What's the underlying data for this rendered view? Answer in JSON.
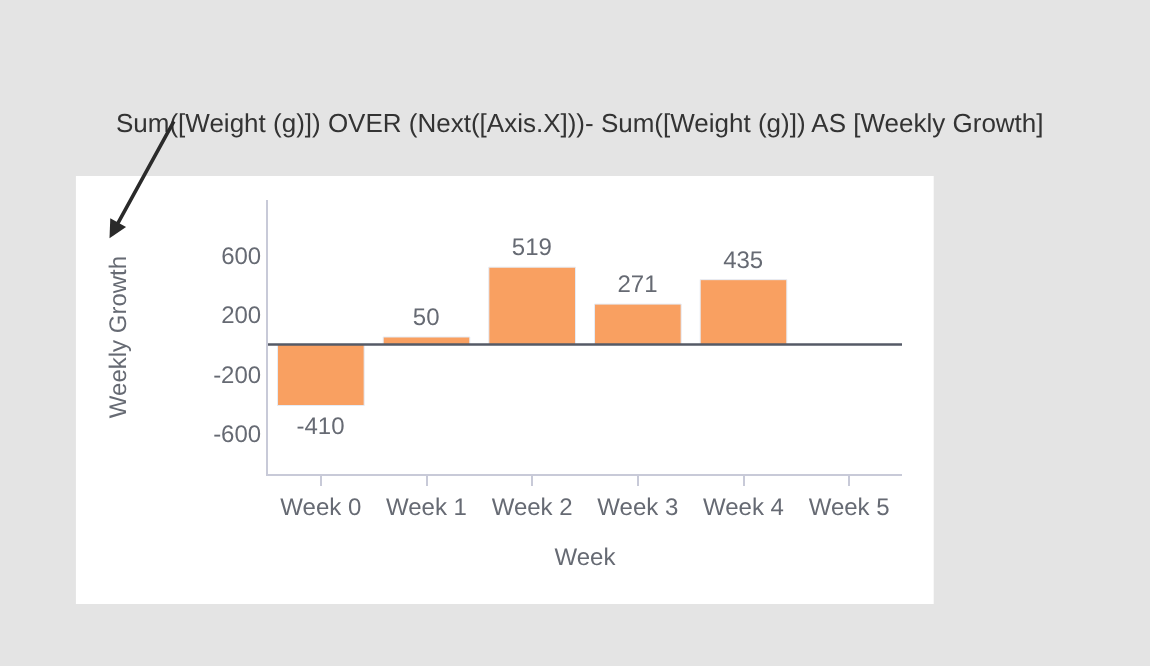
{
  "chart_data": {
    "type": "bar",
    "xlabel": "Week",
    "ylabel": "Weekly Growth",
    "annotations": [
      "Sum([Weight (g)]) OVER (Next([Axis.X]))- Sum([Weight (g)]) AS [Weekly Growth]"
    ],
    "categories": [
      "Week 0",
      "Week 1",
      "Week 2",
      "Week 3",
      "Week 4",
      "Week 5"
    ],
    "values": [
      -410,
      50,
      519,
      271,
      435,
      null
    ],
    "color": "#f9a061",
    "ylim": [
      -870,
      970
    ],
    "yticks": [
      -600,
      -200,
      200,
      600
    ],
    "ref_lines": [
      {
        "axis": "y",
        "value": 0,
        "color": "#555a66"
      }
    ],
    "data_labels": true
  }
}
